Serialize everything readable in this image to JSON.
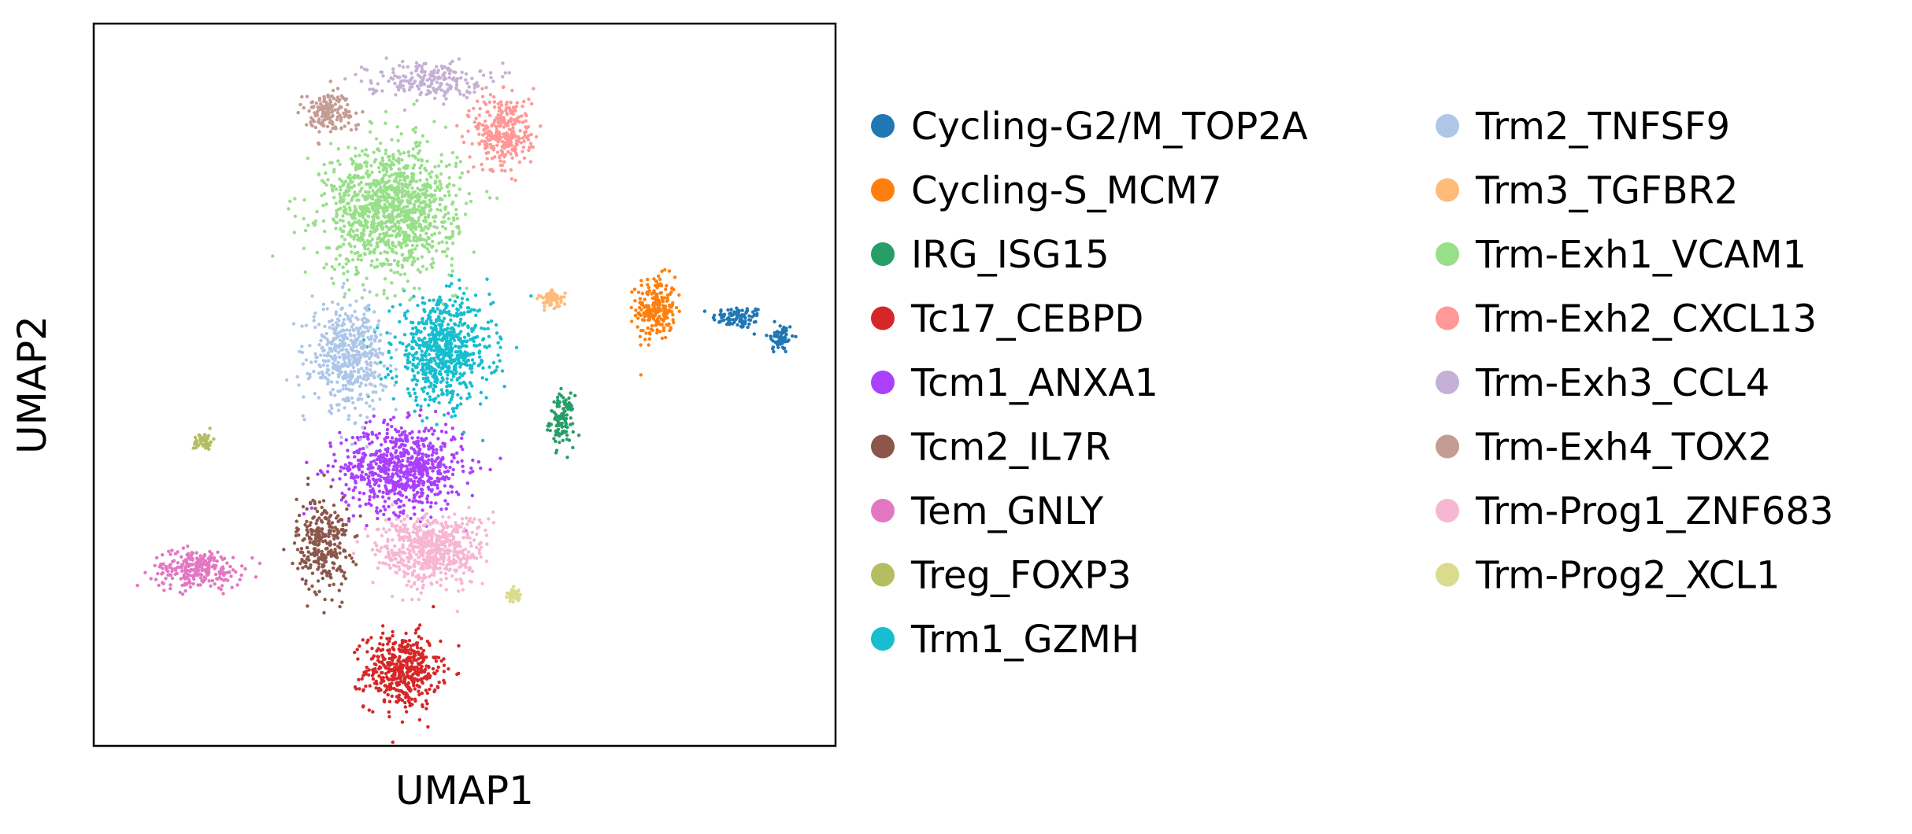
{
  "chart_data": {
    "type": "scatter",
    "title": "",
    "xlabel": "UMAP1",
    "ylabel": "UMAP2",
    "xlim": [
      0,
      100
    ],
    "ylim": [
      0,
      100
    ],
    "grid": false,
    "legend_position": "right",
    "legend_columns": 2,
    "series": [
      {
        "name": "Cycling-G2/M_TOP2A",
        "color": "#1f77b4",
        "clusters": [
          {
            "cx": 86.9,
            "cy": 59.3,
            "sx": 3.2,
            "sy": 1.4,
            "n": 90
          },
          {
            "cx": 92.6,
            "cy": 56.5,
            "sx": 1.6,
            "sy": 2.0,
            "n": 60
          }
        ]
      },
      {
        "name": "Cycling-S_MCM7",
        "color": "#ff7f0e",
        "clusters": [
          {
            "cx": 75.8,
            "cy": 60.6,
            "sx": 2.4,
            "sy": 4.0,
            "n": 220
          }
        ]
      },
      {
        "name": "IRG_ISG15",
        "color": "#279e68",
        "clusters": [
          {
            "cx": 63.1,
            "cy": 45.0,
            "sx": 1.5,
            "sy": 3.2,
            "n": 120
          }
        ]
      },
      {
        "name": "Tc17_CEBPD",
        "color": "#d62728",
        "clusters": [
          {
            "cx": 41.6,
            "cy": 10.4,
            "sx": 4.6,
            "sy": 4.7,
            "n": 450
          }
        ]
      },
      {
        "name": "Tcm1_ANXA1",
        "color": "#aa40fc",
        "clusters": [
          {
            "cx": 41.6,
            "cy": 38.5,
            "sx": 7.5,
            "sy": 5.5,
            "n": 750
          }
        ]
      },
      {
        "name": "Tcm2_IL7R",
        "color": "#8c564b",
        "clusters": [
          {
            "cx": 30.9,
            "cy": 28.0,
            "sx": 3.2,
            "sy": 6.0,
            "n": 300
          }
        ]
      },
      {
        "name": "Tem_GNLY",
        "color": "#e377c2",
        "clusters": [
          {
            "cx": 14.0,
            "cy": 24.5,
            "sx": 5.5,
            "sy": 2.4,
            "n": 260
          }
        ]
      },
      {
        "name": "Treg_FOXP3",
        "color": "#b5bd61",
        "clusters": [
          {
            "cx": 14.8,
            "cy": 42.2,
            "sx": 1.2,
            "sy": 1.1,
            "n": 50
          }
        ]
      },
      {
        "name": "Trm1_GZMH",
        "color": "#17becf",
        "clusters": [
          {
            "cx": 47.0,
            "cy": 54.5,
            "sx": 6.0,
            "sy": 6.5,
            "n": 720
          }
        ]
      },
      {
        "name": "Trm2_TNFSF9",
        "color": "#aec7e8",
        "clusters": [
          {
            "cx": 34.3,
            "cy": 54.0,
            "sx": 4.5,
            "sy": 6.5,
            "n": 500
          }
        ]
      },
      {
        "name": "Trm3_TGFBR2",
        "color": "#ffbb78",
        "clusters": [
          {
            "cx": 61.8,
            "cy": 61.8,
            "sx": 1.5,
            "sy": 1.0,
            "n": 70
          }
        ]
      },
      {
        "name": "Trm-Exh1_VCAM1",
        "color": "#98df8a",
        "clusters": [
          {
            "cx": 40.0,
            "cy": 74.3,
            "sx": 8.0,
            "sy": 8.0,
            "n": 1200
          }
        ]
      },
      {
        "name": "Trm-Exh2_CXCL13",
        "color": "#ff9896",
        "clusters": [
          {
            "cx": 55.3,
            "cy": 85.0,
            "sx": 3.6,
            "sy": 5.0,
            "n": 320
          }
        ]
      },
      {
        "name": "Trm-Exh3_CCL4",
        "color": "#c5b0d5",
        "clusters": [
          {
            "cx": 44.6,
            "cy": 92.3,
            "sx": 7.0,
            "sy": 2.2,
            "n": 200
          }
        ]
      },
      {
        "name": "Trm-Exh4_TOX2",
        "color": "#c49c94",
        "clusters": [
          {
            "cx": 31.6,
            "cy": 87.8,
            "sx": 3.2,
            "sy": 2.6,
            "n": 160
          }
        ]
      },
      {
        "name": "Trm-Prog1_ZNF683",
        "color": "#f7b6d2",
        "clusters": [
          {
            "cx": 45.5,
            "cy": 27.1,
            "sx": 6.5,
            "sy": 4.5,
            "n": 600
          }
        ]
      },
      {
        "name": "Trm-Prog2_XCL1",
        "color": "#dbdb8d",
        "clusters": [
          {
            "cx": 56.6,
            "cy": 20.8,
            "sx": 0.9,
            "sy": 0.8,
            "n": 40
          }
        ]
      }
    ]
  }
}
